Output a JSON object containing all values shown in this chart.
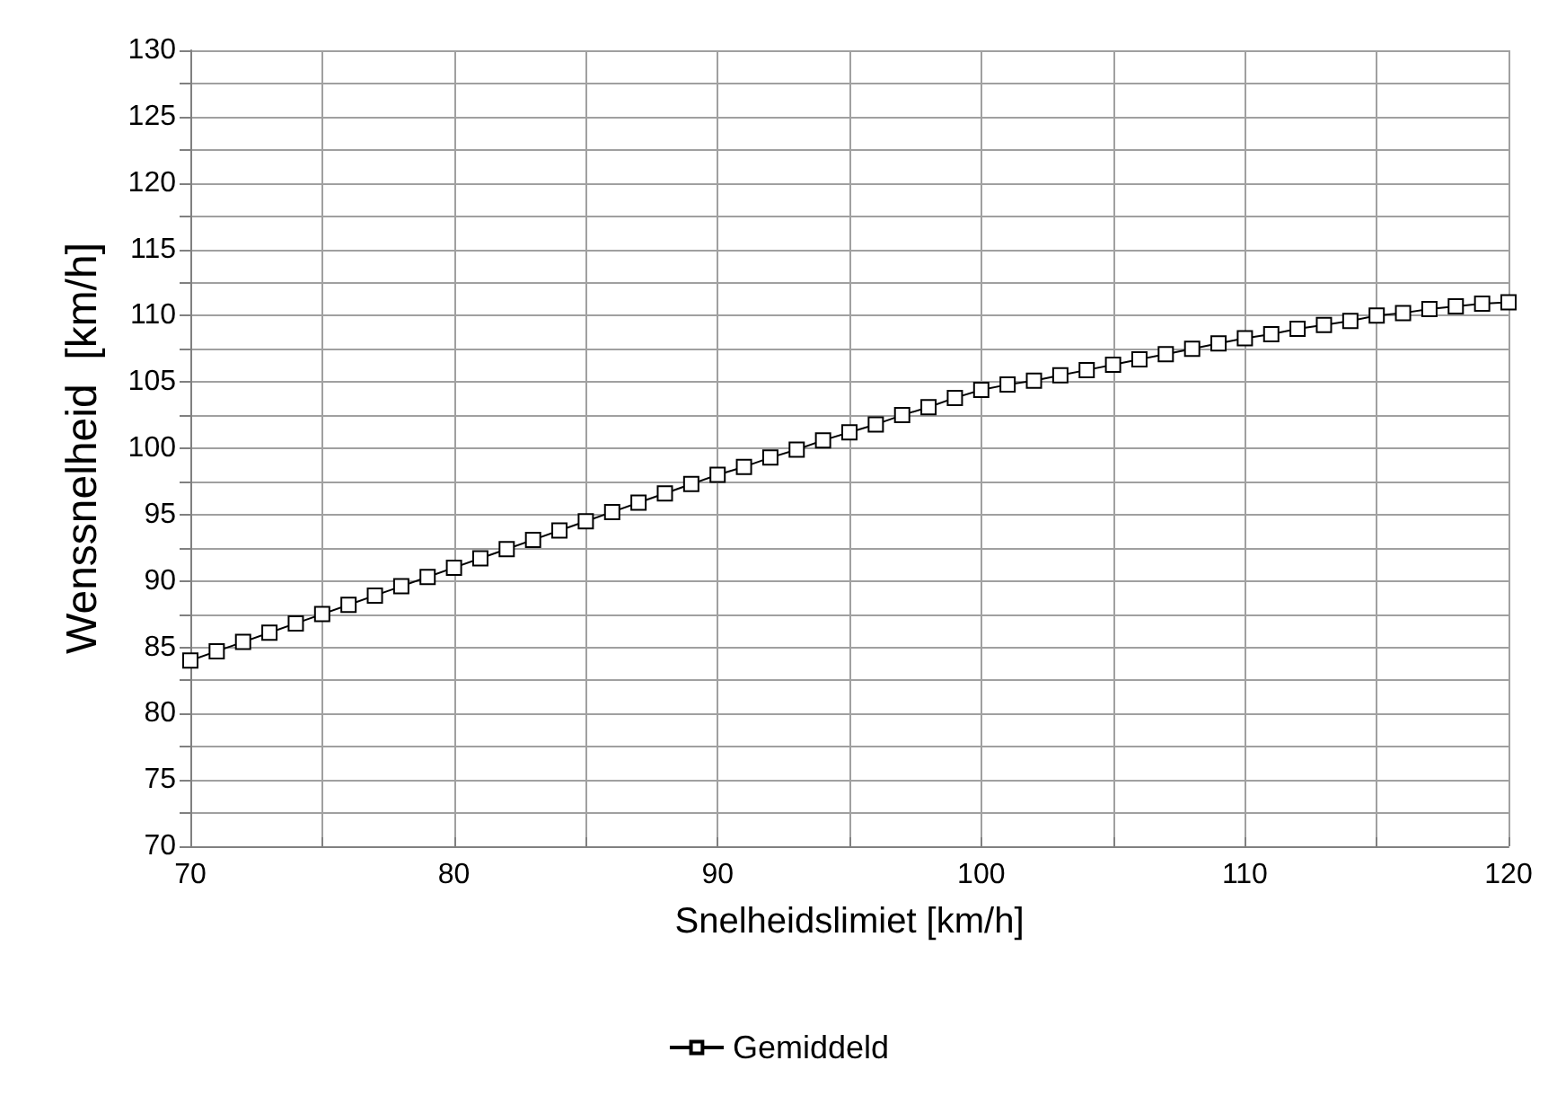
{
  "chart_data": {
    "type": "line",
    "xlabel": "Snelheidslimiet [km/h]",
    "ylabel": "Wenssnelheid  [km/h]",
    "x": [
      70,
      71,
      72,
      73,
      74,
      75,
      76,
      77,
      78,
      79,
      80,
      81,
      82,
      83,
      84,
      85,
      86,
      87,
      88,
      89,
      90,
      91,
      92,
      93,
      94,
      95,
      96,
      97,
      98,
      99,
      100,
      101,
      102,
      103,
      104,
      105,
      106,
      107,
      108,
      109,
      110,
      111,
      112,
      113,
      114,
      115,
      116,
      117,
      118,
      119,
      120
    ],
    "series": [
      {
        "name": "Gemiddeld",
        "color": "#000000",
        "values": [
          84.0,
          84.7,
          85.4,
          86.1,
          86.8,
          87.5,
          88.2,
          88.9,
          89.6,
          90.3,
          91.0,
          91.7,
          92.4,
          93.1,
          93.8,
          94.5,
          95.2,
          95.9,
          96.6,
          97.3,
          98.0,
          98.6,
          99.3,
          99.9,
          100.6,
          101.2,
          101.8,
          102.5,
          103.1,
          103.8,
          104.4,
          104.8,
          105.1,
          105.5,
          105.9,
          106.3,
          106.7,
          107.1,
          107.5,
          107.9,
          108.3,
          108.6,
          109.0,
          109.3,
          109.6,
          110.0,
          110.2,
          110.5,
          110.7,
          110.9,
          111.0
        ]
      }
    ],
    "xlim": [
      70,
      120
    ],
    "xticks": [
      70,
      80,
      90,
      100,
      110,
      120
    ],
    "ylim": [
      70,
      130
    ],
    "yticks": [
      70,
      75,
      80,
      85,
      90,
      95,
      100,
      105,
      110,
      115,
      120,
      125,
      130
    ],
    "grid": true,
    "legend": "bottom",
    "marker": "square",
    "line_style": "solid"
  }
}
